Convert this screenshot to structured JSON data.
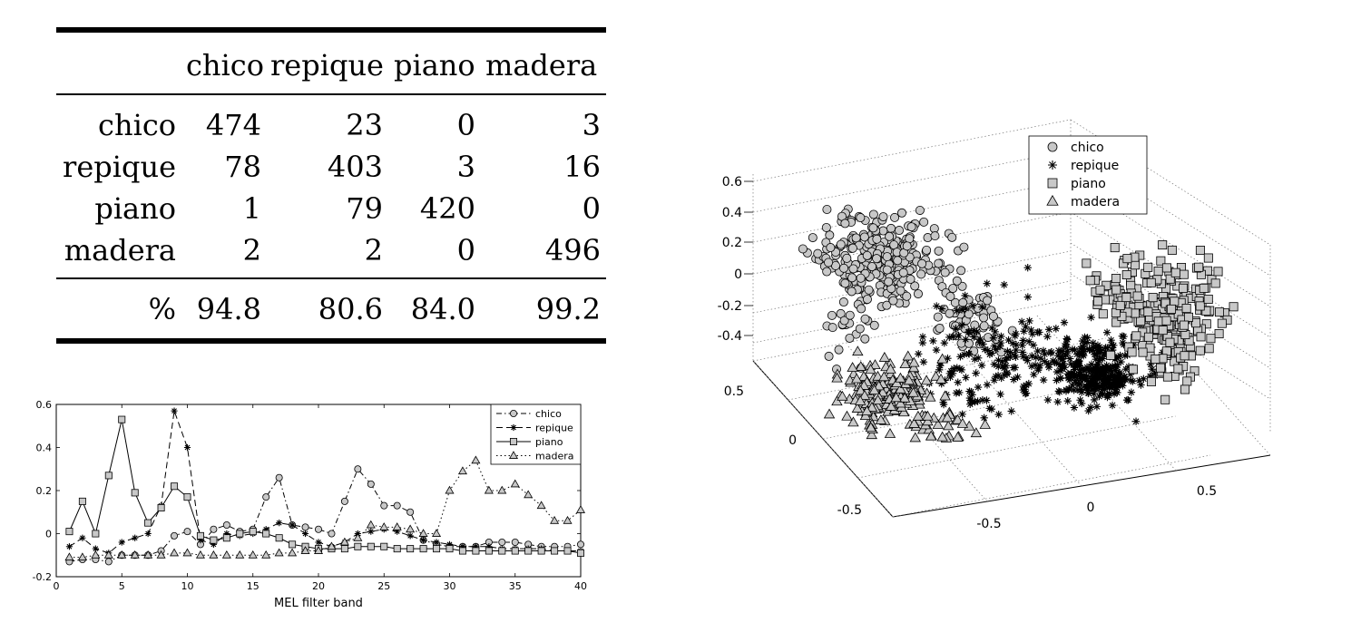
{
  "confusion_table": {
    "columns": [
      "chico",
      "repique",
      "piano",
      "madera"
    ],
    "rows": [
      {
        "label": "chico",
        "values": [
          "474",
          "23",
          "0",
          "3"
        ]
      },
      {
        "label": "repique",
        "values": [
          "78",
          "403",
          "3",
          "16"
        ]
      },
      {
        "label": "piano",
        "values": [
          "1",
          "79",
          "420",
          "0"
        ]
      },
      {
        "label": "madera",
        "values": [
          "2",
          "2",
          "0",
          "496"
        ]
      }
    ],
    "total_label": "%",
    "totals": [
      "94.8",
      "80.6",
      "84.0",
      "99.2"
    ]
  },
  "chart_data": [
    {
      "type": "table",
      "columns": [
        "chico",
        "repique",
        "piano",
        "madera"
      ],
      "rows": [
        "chico",
        "repique",
        "piano",
        "madera"
      ],
      "values": [
        [
          474,
          23,
          0,
          3
        ],
        [
          78,
          403,
          3,
          16
        ],
        [
          1,
          79,
          420,
          0
        ],
        [
          2,
          2,
          0,
          496
        ]
      ],
      "footer_label": "%",
      "footer": [
        94.8,
        80.6,
        84.0,
        99.2
      ]
    },
    {
      "type": "line",
      "xlabel": "MEL filter band",
      "ylabel": "",
      "xlim": [
        0,
        40
      ],
      "ylim": [
        -0.2,
        0.6
      ],
      "xticks": [
        "0",
        "5",
        "10",
        "15",
        "20",
        "25",
        "30",
        "35",
        "40"
      ],
      "yticks": [
        "-0.2",
        "0",
        "0.2",
        "0.4",
        "0.6"
      ],
      "legend": "top-right",
      "x": [
        1,
        2,
        3,
        4,
        5,
        6,
        7,
        8,
        9,
        10,
        11,
        12,
        13,
        14,
        15,
        16,
        17,
        18,
        19,
        20,
        21,
        22,
        23,
        24,
        25,
        26,
        27,
        28,
        29,
        30,
        31,
        32,
        33,
        34,
        35,
        36,
        37,
        38,
        39,
        40
      ],
      "series": [
        {
          "name": "chico",
          "marker": "circle",
          "dash": "dash-dot",
          "values": [
            -0.13,
            -0.12,
            -0.12,
            -0.13,
            -0.1,
            -0.1,
            -0.1,
            -0.08,
            -0.01,
            0.01,
            -0.05,
            0.02,
            0.04,
            0.01,
            0.02,
            0.17,
            0.26,
            0.04,
            0.03,
            0.02,
            0.0,
            0.15,
            0.3,
            0.23,
            0.13,
            0.13,
            0.1,
            -0.03,
            -0.05,
            -0.06,
            -0.06,
            -0.06,
            -0.04,
            -0.04,
            -0.04,
            -0.05,
            -0.06,
            -0.06,
            -0.06,
            -0.05
          ]
        },
        {
          "name": "repique",
          "marker": "star",
          "dash": "dashed",
          "values": [
            -0.06,
            -0.02,
            -0.07,
            -0.09,
            -0.04,
            -0.02,
            0.0,
            0.13,
            0.57,
            0.4,
            -0.03,
            -0.05,
            0.0,
            -0.01,
            0.0,
            0.02,
            0.05,
            0.04,
            0.0,
            -0.04,
            -0.06,
            -0.04,
            0.0,
            0.01,
            0.02,
            0.01,
            -0.01,
            -0.03,
            -0.04,
            -0.05,
            -0.06,
            -0.06,
            -0.06,
            -0.07,
            -0.07,
            -0.07,
            -0.07,
            -0.08,
            -0.08,
            -0.08
          ]
        },
        {
          "name": "piano",
          "marker": "square",
          "dash": "solid",
          "values": [
            0.01,
            0.15,
            0.0,
            0.27,
            0.53,
            0.19,
            0.05,
            0.12,
            0.22,
            0.17,
            -0.01,
            -0.03,
            -0.02,
            0.0,
            0.01,
            0.0,
            -0.02,
            -0.05,
            -0.06,
            -0.07,
            -0.07,
            -0.07,
            -0.06,
            -0.06,
            -0.06,
            -0.07,
            -0.07,
            -0.07,
            -0.07,
            -0.07,
            -0.08,
            -0.08,
            -0.08,
            -0.08,
            -0.08,
            -0.08,
            -0.08,
            -0.08,
            -0.08,
            -0.09
          ]
        },
        {
          "name": "madera",
          "marker": "triangle",
          "dash": "dotted",
          "values": [
            -0.11,
            -0.11,
            -0.1,
            -0.1,
            -0.1,
            -0.1,
            -0.1,
            -0.1,
            -0.09,
            -0.09,
            -0.1,
            -0.1,
            -0.1,
            -0.1,
            -0.1,
            -0.1,
            -0.09,
            -0.09,
            -0.08,
            -0.08,
            -0.06,
            -0.04,
            -0.02,
            0.04,
            0.03,
            0.03,
            0.02,
            0.0,
            0.0,
            0.2,
            0.29,
            0.34,
            0.2,
            0.2,
            0.23,
            0.18,
            0.13,
            0.06,
            0.06,
            0.11
          ]
        }
      ]
    },
    {
      "type": "scatter",
      "projection": "3d",
      "legend": "top-center",
      "grid": true,
      "axis_a_ticks": [
        "-0.5",
        "0",
        "0.5"
      ],
      "axis_b_ticks": [
        "-0.5",
        "0",
        "0.5"
      ],
      "axis_z_ticks": [
        "0.6",
        "0.4",
        "0.2",
        "0",
        "-0.2",
        "-0.4"
      ],
      "series": [
        {
          "name": "chico",
          "marker": "circle"
        },
        {
          "name": "repique",
          "marker": "star"
        },
        {
          "name": "piano",
          "marker": "square"
        },
        {
          "name": "madera",
          "marker": "triangle"
        }
      ]
    }
  ]
}
